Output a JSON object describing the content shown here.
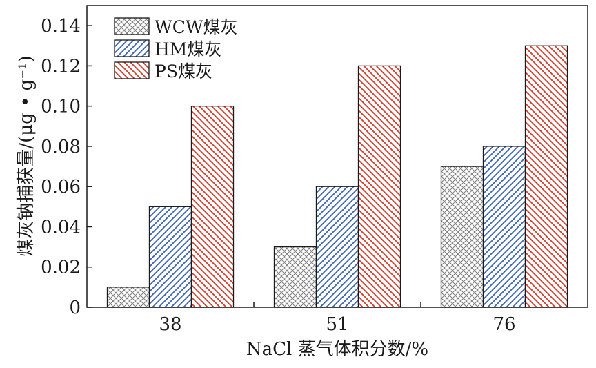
{
  "chart_data": {
    "type": "bar",
    "categories": [
      "38",
      "51",
      "76"
    ],
    "series": [
      {
        "name": "WCW煤灰",
        "values": [
          0.01,
          0.03,
          0.07
        ],
        "color": "#7f7f7f",
        "pattern": "crosshatch"
      },
      {
        "name": "HM煤灰",
        "values": [
          0.05,
          0.06,
          0.08
        ],
        "color": "#3a64b0",
        "pattern": "diagonal-up"
      },
      {
        "name": "PS煤灰",
        "values": [
          0.1,
          0.12,
          0.13
        ],
        "color": "#d43a2a",
        "pattern": "diagonal-down"
      }
    ],
    "xlabel": "NaCl 蒸气体积分数/%",
    "ylabel": "煤灰钠捕获量/(μg • g⁻¹)",
    "ylim": [
      0,
      0.15
    ],
    "yticks": [
      "0",
      "0.02",
      "0.04",
      "0.06",
      "0.08",
      "0.10",
      "0.12",
      "0.14"
    ],
    "ytick_values": [
      0,
      0.02,
      0.04,
      0.06,
      0.08,
      0.1,
      0.12,
      0.14
    ],
    "grid": false,
    "legend_position": "top-left"
  }
}
